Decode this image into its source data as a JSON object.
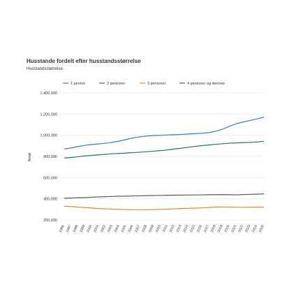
{
  "chart_data": {
    "type": "line",
    "title": "Husstande fordelt efter husstandsstørrelse",
    "subtitle": "Husstandsstørrelse:",
    "y_label": "Antal",
    "categories": [
      "1996",
      "1997",
      "1998",
      "1999",
      "2000",
      "2001",
      "2002",
      "2003",
      "2004",
      "2005",
      "2006",
      "2007",
      "2008",
      "2009",
      "2010",
      "2011",
      "2012",
      "2013",
      "2014",
      "2015",
      "2016",
      "2017",
      "2018",
      "2019",
      "2020",
      "2021",
      "2022",
      "2023",
      "2024",
      "2025"
    ],
    "series": [
      {
        "name": "1 person",
        "color": "#2f7fc1",
        "values": [
          870000,
          880000,
          893000,
          905000,
          912000,
          918000,
          925000,
          933000,
          945000,
          960000,
          975000,
          985000,
          993000,
          997000,
          1000000,
          1003000,
          1005000,
          1008000,
          1012000,
          1015000,
          1018000,
          1025000,
          1038000,
          1058000,
          1085000,
          1110000,
          1125000,
          1140000,
          1155000,
          1170000
        ]
      },
      {
        "name": "2 personer",
        "color": "#1e7a5a",
        "values": [
          785000,
          790000,
          797000,
          805000,
          810000,
          815000,
          820000,
          825000,
          828000,
          832000,
          836000,
          840000,
          845000,
          850000,
          855000,
          862000,
          870000,
          878000,
          886000,
          895000,
          902000,
          908000,
          914000,
          920000,
          925000,
          928000,
          930000,
          933000,
          937000,
          942000
        ]
      },
      {
        "name": "3 personer",
        "color": "#e08a2c",
        "values": [
          330000,
          327000,
          322000,
          318000,
          313000,
          308000,
          305000,
          302000,
          300000,
          298000,
          297000,
          296000,
          297000,
          298000,
          300000,
          302000,
          305000,
          308000,
          310000,
          312000,
          315000,
          318000,
          322000,
          323000,
          322000,
          320000,
          320000,
          321000,
          321000,
          322000
        ]
      },
      {
        "name": "4 personer og derover",
        "color": "#555a5e",
        "values": [
          405000,
          408000,
          410000,
          412000,
          415000,
          418000,
          420000,
          422000,
          424000,
          425000,
          427000,
          428000,
          430000,
          431000,
          432000,
          433000,
          434000,
          435000,
          436000,
          436000,
          437000,
          438000,
          439000,
          440000,
          438000,
          437000,
          440000,
          442000,
          444000,
          447000
        ]
      }
    ],
    "ylim": [
      200000,
      1400000
    ],
    "yticks": [
      {
        "value": 200000,
        "label": "200,000"
      },
      {
        "value": 400000,
        "label": "400,000"
      },
      {
        "value": 600000,
        "label": "600,000"
      },
      {
        "value": 800000,
        "label": "800,000"
      },
      {
        "value": 1000000,
        "label": "1,000,000"
      },
      {
        "value": 1200000,
        "label": "1,200,000"
      },
      {
        "value": 1400000,
        "label": "1,400,000"
      }
    ],
    "grid": true
  }
}
